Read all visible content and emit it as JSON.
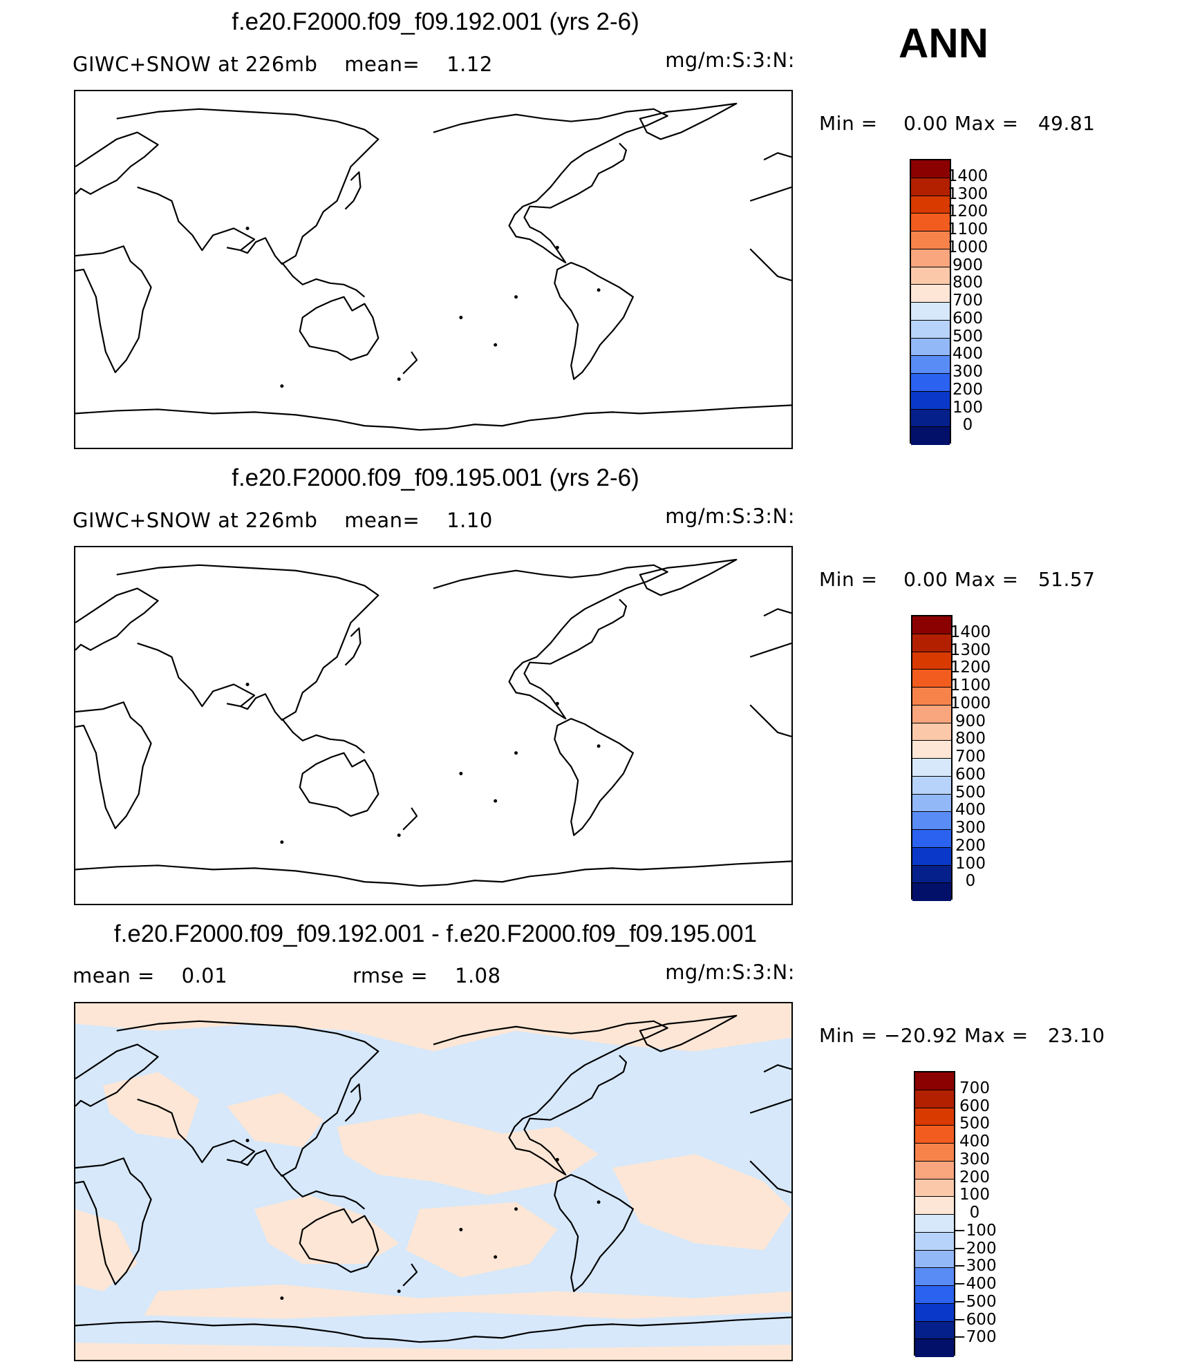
{
  "season": "ANN",
  "panels": [
    {
      "title": "f.e20.F2000.f09_f09.192.001 (yrs 2-6)",
      "left_label": "GIWC+SNOW at 226mb    mean=    1.12",
      "units": "mg/m:S:3:N:",
      "min_max": "Min =    0.00 Max =   49.81",
      "colorbar_labels": [
        "1400",
        "1300",
        "1200",
        "1100",
        "1000",
        "900",
        "800",
        "700",
        "600",
        "500",
        "400",
        "300",
        "200",
        "100",
        "0"
      ],
      "filled": false
    },
    {
      "title": "f.e20.F2000.f09_f09.195.001 (yrs 2-6)",
      "left_label": "GIWC+SNOW at 226mb    mean=    1.10",
      "units": "mg/m:S:3:N:",
      "min_max": "Min =    0.00 Max =   51.57",
      "colorbar_labels": [
        "1400",
        "1300",
        "1200",
        "1100",
        "1000",
        "900",
        "800",
        "700",
        "600",
        "500",
        "400",
        "300",
        "200",
        "100",
        "0"
      ],
      "filled": false
    },
    {
      "title": "f.e20.F2000.f09_f09.192.001 - f.e20.F2000.f09_f09.195.001",
      "left_label": "mean =    0.01",
      "mid_label": "rmse =    1.08",
      "units": "mg/m:S:3:N:",
      "min_max": "Min = −20.92 Max =   23.10",
      "colorbar_labels": [
        "700",
        "600",
        "500",
        "400",
        "300",
        "200",
        "100",
        "0",
        "−100",
        "−200",
        "−300",
        "−400",
        "−500",
        "−600",
        "−700"
      ],
      "filled": true
    }
  ],
  "colorbar_colors": [
    "#8b0000",
    "#b22000",
    "#d93a00",
    "#f25c1e",
    "#f7834b",
    "#f9a57d",
    "#fbc9aa",
    "#fde6d5",
    "#d6e8fa",
    "#b8d3fa",
    "#93b8f8",
    "#5a8cf5",
    "#2b62ef",
    "#0a38c8",
    "#05208a",
    "#02106a"
  ],
  "fill_colors": {
    "positive": "#fde6d5",
    "negative": "#d6e8fa"
  }
}
